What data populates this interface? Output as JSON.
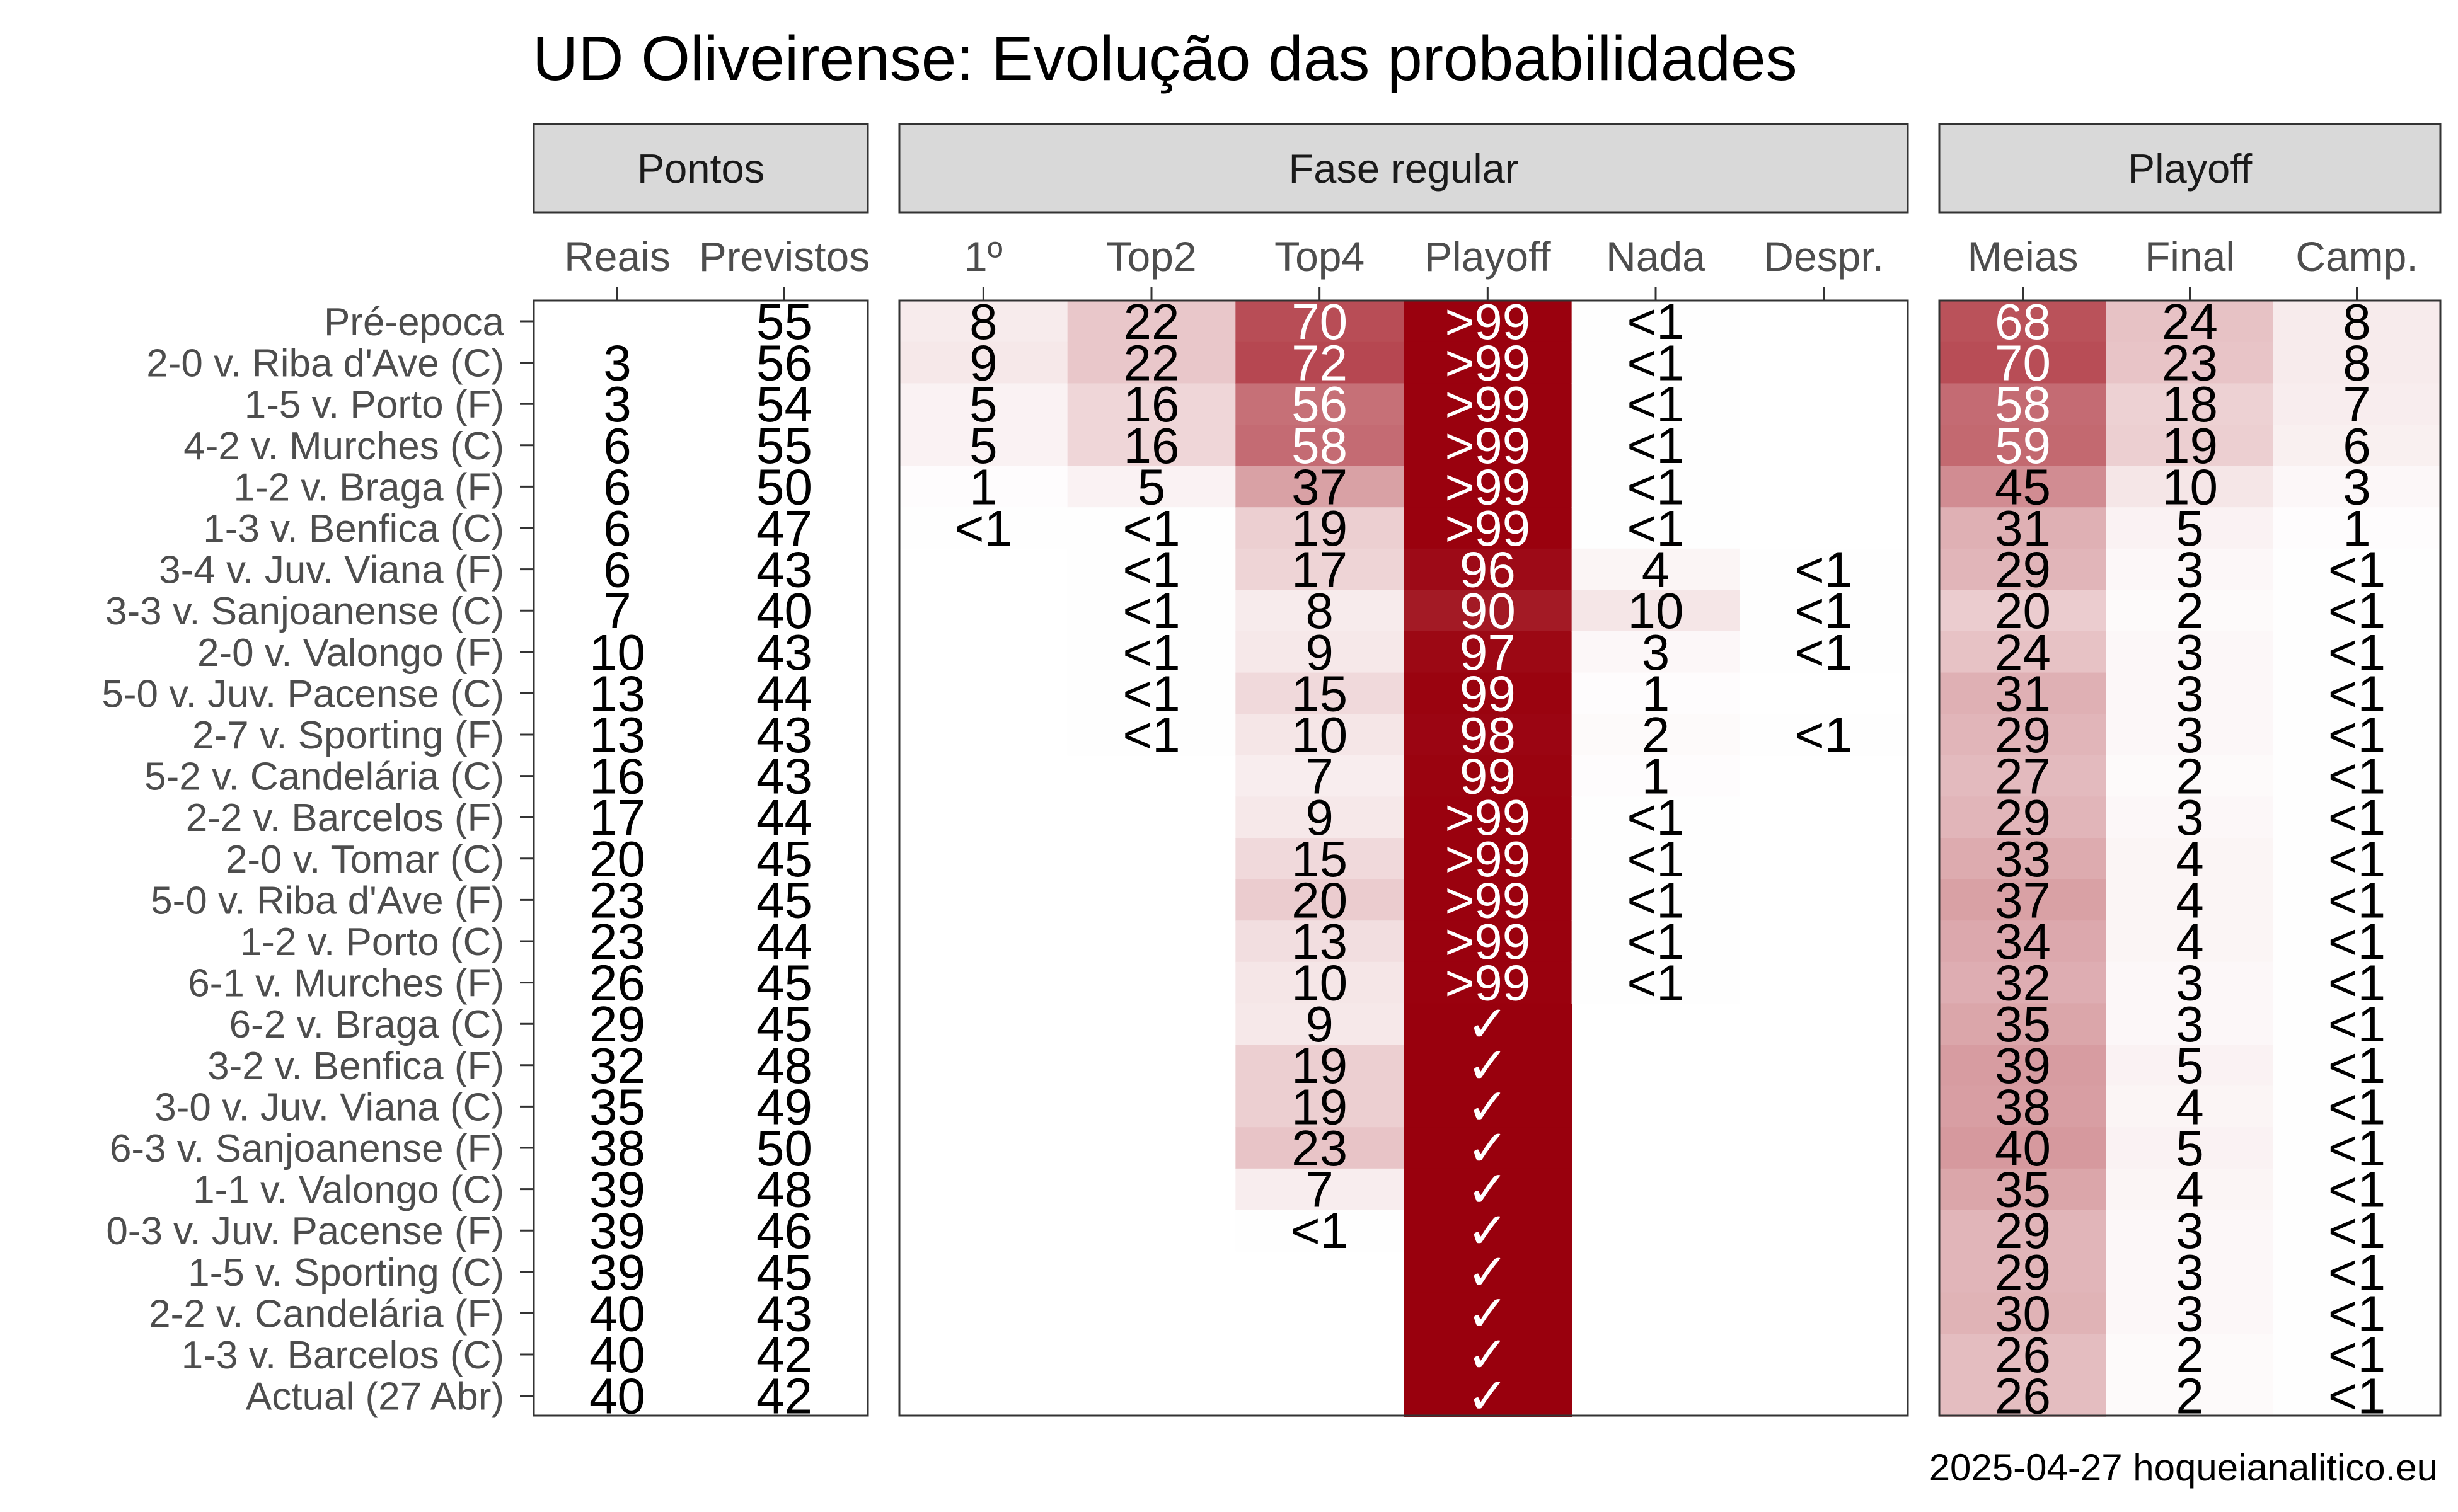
{
  "caption": "2025-04-27 hoqueianalitico.eu",
  "chart_data": {
    "type": "heatmap",
    "title": "UD Oliveirense: Evolução das probabilidades",
    "rows": [
      "Pré-epoca",
      "2-0 v. Riba d'Ave (C)",
      "1-5 v. Porto (F)",
      "4-2 v. Murches (C)",
      "1-2 v. Braga (F)",
      "1-3 v. Benfica (C)",
      "3-4 v. Juv. Viana (F)",
      "3-3 v. Sanjoanense (C)",
      "2-0 v. Valongo (F)",
      "5-0 v. Juv. Pacense (C)",
      "2-7 v. Sporting (F)",
      "5-2 v. Candelária (C)",
      "2-2 v. Barcelos (F)",
      "2-0 v. Tomar (C)",
      "5-0 v. Riba d'Ave (F)",
      "1-2 v. Porto (C)",
      "6-1 v. Murches (F)",
      "6-2 v. Braga (C)",
      "3-2 v. Benfica (F)",
      "3-0 v. Juv. Viana (C)",
      "6-3 v. Sanjoanense (F)",
      "1-1 v. Valongo (C)",
      "0-3 v. Juv. Pacense (F)",
      "1-5 v. Sporting (C)",
      "2-2 v. Candelária (F)",
      "1-3 v. Barcelos (C)",
      "Actual (27 Abr)"
    ],
    "panels": [
      {
        "name": "Pontos",
        "shaded": false,
        "columns": [
          {
            "name": "Reais",
            "values": [
              null,
              3,
              3,
              6,
              6,
              6,
              6,
              7,
              10,
              13,
              13,
              16,
              17,
              20,
              23,
              23,
              26,
              29,
              32,
              35,
              38,
              39,
              39,
              39,
              40,
              40,
              40
            ],
            "labels": [
              "",
              "3",
              "3",
              "6",
              "6",
              "6",
              "6",
              "7",
              "10",
              "13",
              "13",
              "16",
              "17",
              "20",
              "23",
              "23",
              "26",
              "29",
              "32",
              "35",
              "38",
              "39",
              "39",
              "39",
              "40",
              "40",
              "40"
            ]
          },
          {
            "name": "Previstos",
            "values": [
              55,
              56,
              54,
              55,
              50,
              47,
              43,
              40,
              43,
              44,
              43,
              43,
              44,
              45,
              45,
              44,
              45,
              45,
              48,
              49,
              50,
              48,
              46,
              45,
              43,
              42,
              42
            ],
            "labels": [
              "55",
              "56",
              "54",
              "55",
              "50",
              "47",
              "43",
              "40",
              "43",
              "44",
              "43",
              "43",
              "44",
              "45",
              "45",
              "44",
              "45",
              "45",
              "48",
              "49",
              "50",
              "48",
              "46",
              "45",
              "43",
              "42",
              "42"
            ]
          }
        ]
      },
      {
        "name": "Fase regular",
        "shaded": true,
        "columns": [
          {
            "name": "1º",
            "values": [
              8,
              9,
              5,
              5,
              1,
              0.5,
              null,
              null,
              null,
              null,
              null,
              null,
              null,
              null,
              null,
              null,
              null,
              null,
              null,
              null,
              null,
              null,
              null,
              null,
              null,
              null,
              null
            ],
            "labels": [
              "8",
              "9",
              "5",
              "5",
              "1",
              "<1",
              "",
              "",
              "",
              "",
              "",
              "",
              "",
              "",
              "",
              "",
              "",
              "",
              "",
              "",
              "",
              "",
              "",
              "",
              "",
              "",
              ""
            ]
          },
          {
            "name": "Top2",
            "values": [
              22,
              22,
              16,
              16,
              5,
              0.5,
              0.5,
              0.5,
              0.5,
              0.5,
              0.5,
              null,
              null,
              null,
              null,
              null,
              null,
              null,
              null,
              null,
              null,
              null,
              null,
              null,
              null,
              null,
              null
            ],
            "labels": [
              "22",
              "22",
              "16",
              "16",
              "5",
              "<1",
              "<1",
              "<1",
              "<1",
              "<1",
              "<1",
              "",
              "",
              "",
              "",
              "",
              "",
              "",
              "",
              "",
              "",
              "",
              "",
              "",
              "",
              "",
              ""
            ]
          },
          {
            "name": "Top4",
            "values": [
              70,
              72,
              56,
              58,
              37,
              19,
              17,
              8,
              9,
              15,
              10,
              7,
              9,
              15,
              20,
              13,
              10,
              9,
              19,
              19,
              23,
              7,
              0.5,
              null,
              null,
              null,
              null
            ],
            "labels": [
              "70",
              "72",
              "56",
              "58",
              "37",
              "19",
              "17",
              "8",
              "9",
              "15",
              "10",
              "7",
              "9",
              "15",
              "20",
              "13",
              "10",
              "9",
              "19",
              "19",
              "23",
              "7",
              "<1",
              "",
              "",
              "",
              ""
            ]
          },
          {
            "name": "Playoff",
            "values": [
              99.5,
              99.5,
              99.5,
              99.5,
              99.5,
              99.5,
              96,
              90,
              97,
              99,
              98,
              99,
              99.5,
              99.5,
              99.5,
              99.5,
              99.5,
              100,
              100,
              100,
              100,
              100,
              100,
              100,
              100,
              100,
              100
            ],
            "labels": [
              ">99",
              ">99",
              ">99",
              ">99",
              ">99",
              ">99",
              "96",
              "90",
              "97",
              "99",
              "98",
              "99",
              ">99",
              ">99",
              ">99",
              ">99",
              ">99",
              "✓",
              "✓",
              "✓",
              "✓",
              "✓",
              "✓",
              "✓",
              "✓",
              "✓",
              "✓"
            ]
          },
          {
            "name": "Nada",
            "values": [
              0.5,
              0.5,
              0.5,
              0.5,
              0.5,
              0.5,
              4,
              10,
              3,
              1,
              2,
              1,
              0.5,
              0.5,
              0.5,
              0.5,
              0.5,
              null,
              null,
              null,
              null,
              null,
              null,
              null,
              null,
              null,
              null
            ],
            "labels": [
              "<1",
              "<1",
              "<1",
              "<1",
              "<1",
              "<1",
              "4",
              "10",
              "3",
              "1",
              "2",
              "1",
              "<1",
              "<1",
              "<1",
              "<1",
              "<1",
              "",
              "",
              "",
              "",
              "",
              "",
              "",
              "",
              "",
              ""
            ]
          },
          {
            "name": "Despr.",
            "values": [
              null,
              null,
              null,
              null,
              null,
              null,
              0.5,
              0.5,
              0.5,
              null,
              0.5,
              null,
              null,
              null,
              null,
              null,
              null,
              null,
              null,
              null,
              null,
              null,
              null,
              null,
              null,
              null,
              null
            ],
            "labels": [
              "",
              "",
              "",
              "",
              "",
              "",
              "<1",
              "<1",
              "<1",
              "",
              "<1",
              "",
              "",
              "",
              "",
              "",
              "",
              "",
              "",
              "",
              "",
              "",
              "",
              "",
              "",
              "",
              ""
            ]
          }
        ]
      },
      {
        "name": "Playoff",
        "shaded": true,
        "columns": [
          {
            "name": "Meias",
            "values": [
              68,
              70,
              58,
              59,
              45,
              31,
              29,
              20,
              24,
              31,
              29,
              27,
              29,
              33,
              37,
              34,
              32,
              35,
              39,
              38,
              40,
              35,
              29,
              29,
              30,
              26,
              26
            ],
            "labels": [
              "68",
              "70",
              "58",
              "59",
              "45",
              "31",
              "29",
              "20",
              "24",
              "31",
              "29",
              "27",
              "29",
              "33",
              "37",
              "34",
              "32",
              "35",
              "39",
              "38",
              "40",
              "35",
              "29",
              "29",
              "30",
              "26",
              "26"
            ]
          },
          {
            "name": "Final",
            "values": [
              24,
              23,
              18,
              19,
              10,
              5,
              3,
              2,
              3,
              3,
              3,
              2,
              3,
              4,
              4,
              4,
              3,
              3,
              5,
              4,
              5,
              4,
              3,
              3,
              3,
              2,
              2
            ],
            "labels": [
              "24",
              "23",
              "18",
              "19",
              "10",
              "5",
              "3",
              "2",
              "3",
              "3",
              "3",
              "2",
              "3",
              "4",
              "4",
              "4",
              "3",
              "3",
              "5",
              "4",
              "5",
              "4",
              "3",
              "3",
              "3",
              "2",
              "2"
            ]
          },
          {
            "name": "Camp.",
            "values": [
              8,
              8,
              7,
              6,
              3,
              1,
              0.5,
              0.5,
              0.5,
              0.5,
              0.5,
              0.5,
              0.5,
              0.5,
              0.5,
              0.5,
              0.5,
              0.5,
              0.5,
              0.5,
              0.5,
              0.5,
              0.5,
              0.5,
              0.5,
              0.5,
              0.5
            ],
            "labels": [
              "8",
              "8",
              "7",
              "6",
              "3",
              "1",
              "<1",
              "<1",
              "<1",
              "<1",
              "<1",
              "<1",
              "<1",
              "<1",
              "<1",
              "<1",
              "<1",
              "<1",
              "<1",
              "<1",
              "<1",
              "<1",
              "<1",
              "<1",
              "<1",
              "<1",
              "<1"
            ]
          }
        ]
      }
    ],
    "color_scale": {
      "low": "#ffffff",
      "high": "#99000d",
      "domain": [
        0,
        100
      ]
    }
  }
}
